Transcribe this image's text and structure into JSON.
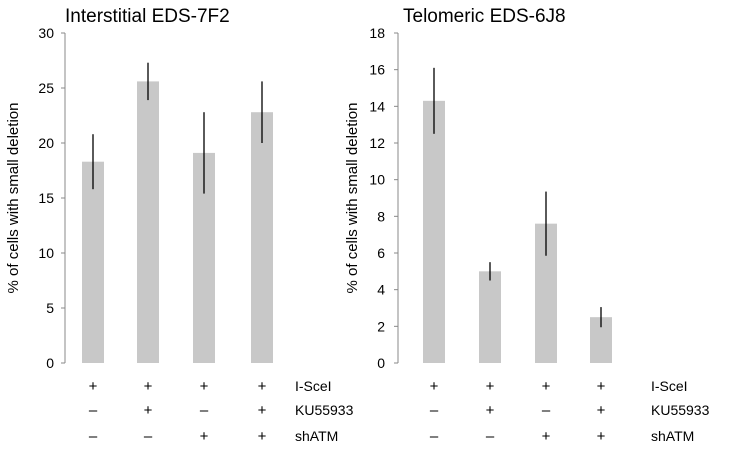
{
  "chart_data": [
    {
      "type": "bar",
      "title": "Interstitial EDS-7F2",
      "ylabel": "% of cells with small deletion",
      "xlabel": "",
      "ylim": [
        0,
        30
      ],
      "yticks": [
        0,
        5,
        10,
        15,
        20,
        25,
        30
      ],
      "categories": [
        "+/-/-",
        "+/+/-",
        "+/-/+",
        "+/+/+"
      ],
      "values": [
        18.3,
        25.6,
        19.1,
        22.8
      ],
      "errors": [
        2.5,
        1.7,
        3.7,
        2.8
      ],
      "bar_color": "#c8c8c8",
      "error_color": "#000000",
      "conditions": [
        [
          "+",
          "+",
          "+",
          "+"
        ],
        [
          "–",
          "+",
          "–",
          "+"
        ],
        [
          "–",
          "–",
          "+",
          "+"
        ]
      ],
      "condition_labels": [
        "I-SceI",
        "KU55933",
        "shATM"
      ]
    },
    {
      "type": "bar",
      "title": "Telomeric EDS-6J8",
      "ylabel": "% of cells with small deletion",
      "xlabel": "",
      "ylim": [
        0,
        18
      ],
      "yticks": [
        0,
        2,
        4,
        6,
        8,
        10,
        12,
        14,
        16,
        18
      ],
      "categories": [
        "+/-/-",
        "+/+/-",
        "+/-/+",
        "+/+/+"
      ],
      "values": [
        14.3,
        5.0,
        7.6,
        2.5
      ],
      "errors": [
        1.8,
        0.5,
        1.75,
        0.55
      ],
      "bar_color": "#c8c8c8",
      "error_color": "#000000",
      "conditions": [
        [
          "+",
          "+",
          "+",
          "+"
        ],
        [
          "–",
          "+",
          "–",
          "+"
        ],
        [
          "–",
          "–",
          "+",
          "+"
        ]
      ],
      "condition_labels": [
        "I-SceI",
        "KU55933",
        "shATM"
      ]
    }
  ]
}
